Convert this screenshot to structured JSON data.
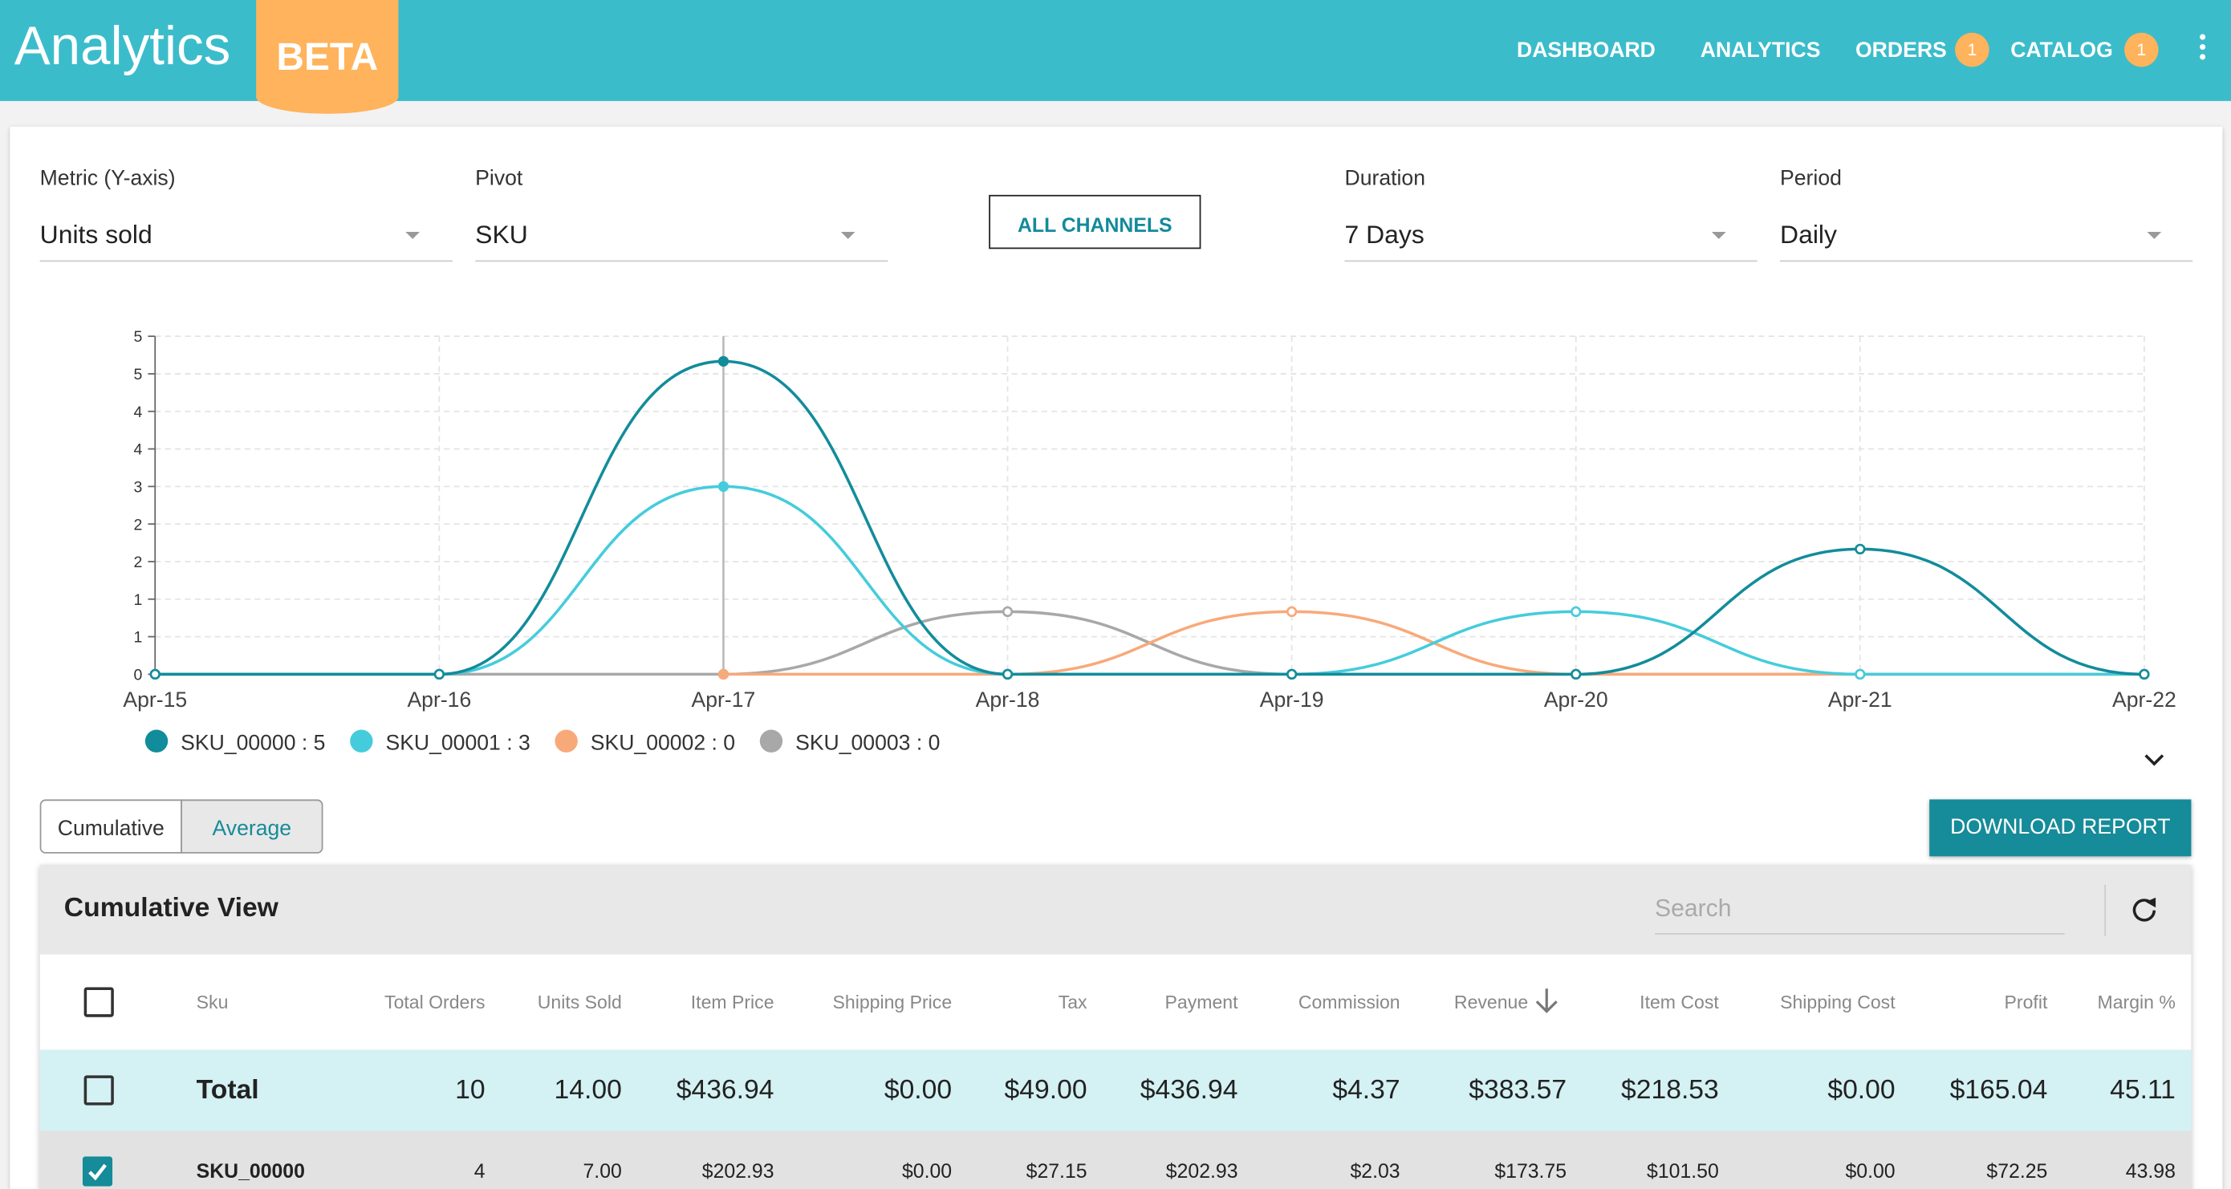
{
  "header": {
    "title": "Analytics",
    "badge": "BETA",
    "nav": [
      {
        "label": "DASHBOARD"
      },
      {
        "label": "ANALYTICS"
      },
      {
        "label": "ORDERS",
        "badge": 1
      },
      {
        "label": "CATALOG",
        "badge": 1
      }
    ]
  },
  "controls": {
    "metric": {
      "label": "Metric (Y-axis)",
      "value": "Units sold"
    },
    "pivot": {
      "label": "Pivot",
      "value": "SKU"
    },
    "channels": "ALL CHANNELS",
    "duration": {
      "label": "Duration",
      "value": "7 Days"
    },
    "period": {
      "label": "Period",
      "value": "Daily"
    }
  },
  "chart_data": {
    "type": "line",
    "categories": [
      "Apr-15",
      "Apr-16",
      "Apr-17",
      "Apr-18",
      "Apr-19",
      "Apr-20",
      "Apr-21",
      "Apr-22"
    ],
    "ylim": [
      0,
      5.4
    ],
    "yticks": [
      0,
      {
        "value": 0.6,
        "label": "1"
      },
      {
        "value": 1.2,
        "label": "1"
      },
      {
        "value": 1.8,
        "label": "2"
      },
      {
        "value": 2.4,
        "label": "2"
      },
      {
        "value": 3.0,
        "label": "3"
      },
      {
        "value": 3.6,
        "label": "4"
      },
      {
        "value": 4.2,
        "label": "4"
      },
      {
        "value": 4.8,
        "label": "5"
      },
      {
        "value": 5.4,
        "label": "5"
      }
    ],
    "grid": true,
    "series": [
      {
        "legend": "SKU_00000 : 5",
        "color": "#128c9a",
        "values": [
          0,
          0,
          5,
          0,
          0,
          0,
          2,
          0
        ]
      },
      {
        "legend": "SKU_00001 : 3",
        "color": "#45ccdc",
        "values": [
          0,
          0,
          3,
          0,
          0,
          1,
          0,
          0
        ]
      },
      {
        "legend": "SKU_00002 : 0",
        "color": "#f8a97a",
        "values": [
          null,
          null,
          0,
          0,
          1,
          0,
          0,
          0
        ]
      },
      {
        "legend": "SKU_00003 : 0",
        "color": "#a8a8a8",
        "values": [
          0,
          0,
          0,
          1,
          0,
          0,
          0,
          0
        ]
      }
    ]
  },
  "view_toggle": [
    "Cumulative",
    "Average"
  ],
  "download": "DOWNLOAD REPORT",
  "table": {
    "title": "Cumulative View",
    "search": "Search",
    "columns": [
      "Sku",
      "Total Orders",
      "Units Sold",
      "Item Price",
      "Shipping Price",
      "Tax",
      "Payment",
      "Commission",
      "Revenue",
      "Item Cost",
      "Shipping Cost",
      "Profit",
      "Margin %"
    ],
    "rows": [
      [
        "Total",
        10,
        "14.00",
        "$436.94",
        "$0.00",
        "$49.00",
        "$436.94",
        "$4.37",
        "$383.57",
        "$218.53",
        "$0.00",
        "$165.04",
        "45.11"
      ],
      [
        "SKU_00000",
        4,
        "7.00",
        "$202.93",
        "$0.00",
        "$27.15",
        "$202.93",
        "$2.03",
        "$173.75",
        "$101.50",
        "$0.00",
        "$72.25",
        "43.98"
      ]
    ]
  }
}
